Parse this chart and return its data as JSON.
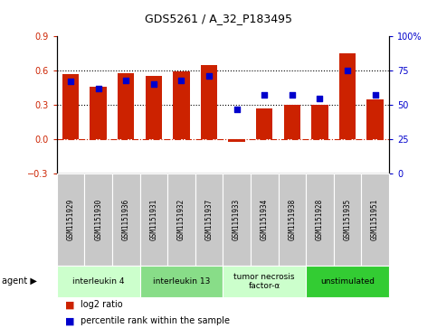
{
  "title": "GDS5261 / A_32_P183495",
  "samples": [
    "GSM1151929",
    "GSM1151930",
    "GSM1151936",
    "GSM1151931",
    "GSM1151932",
    "GSM1151937",
    "GSM1151933",
    "GSM1151934",
    "GSM1151938",
    "GSM1151928",
    "GSM1151935",
    "GSM1151951"
  ],
  "log2_ratio": [
    0.57,
    0.46,
    0.58,
    0.55,
    0.59,
    0.65,
    -0.02,
    0.27,
    0.3,
    0.3,
    0.75,
    0.35
  ],
  "percentile": [
    67,
    62,
    68,
    65,
    68,
    71,
    47,
    57,
    57,
    55,
    75,
    57
  ],
  "agents": [
    {
      "label": "interleukin 4",
      "cols": [
        0,
        1,
        2
      ],
      "color": "#ccffcc"
    },
    {
      "label": "interleukin 13",
      "cols": [
        3,
        4,
        5
      ],
      "color": "#88dd88"
    },
    {
      "label": "tumor necrosis\nfactor-α",
      "cols": [
        6,
        7,
        8
      ],
      "color": "#ccffcc"
    },
    {
      "label": "unstimulated",
      "cols": [
        9,
        10,
        11
      ],
      "color": "#33cc33"
    }
  ],
  "bar_color": "#cc2200",
  "dot_color": "#0000cc",
  "ylim_left": [
    -0.3,
    0.9
  ],
  "ylim_right": [
    0,
    100
  ],
  "yticks_left": [
    -0.3,
    0.0,
    0.3,
    0.6,
    0.9
  ],
  "yticks_right": [
    0,
    25,
    50,
    75,
    100
  ],
  "hlines": [
    0.3,
    0.6
  ],
  "sample_bg": "#c8c8c8",
  "sample_edge": "#aaaaaa"
}
